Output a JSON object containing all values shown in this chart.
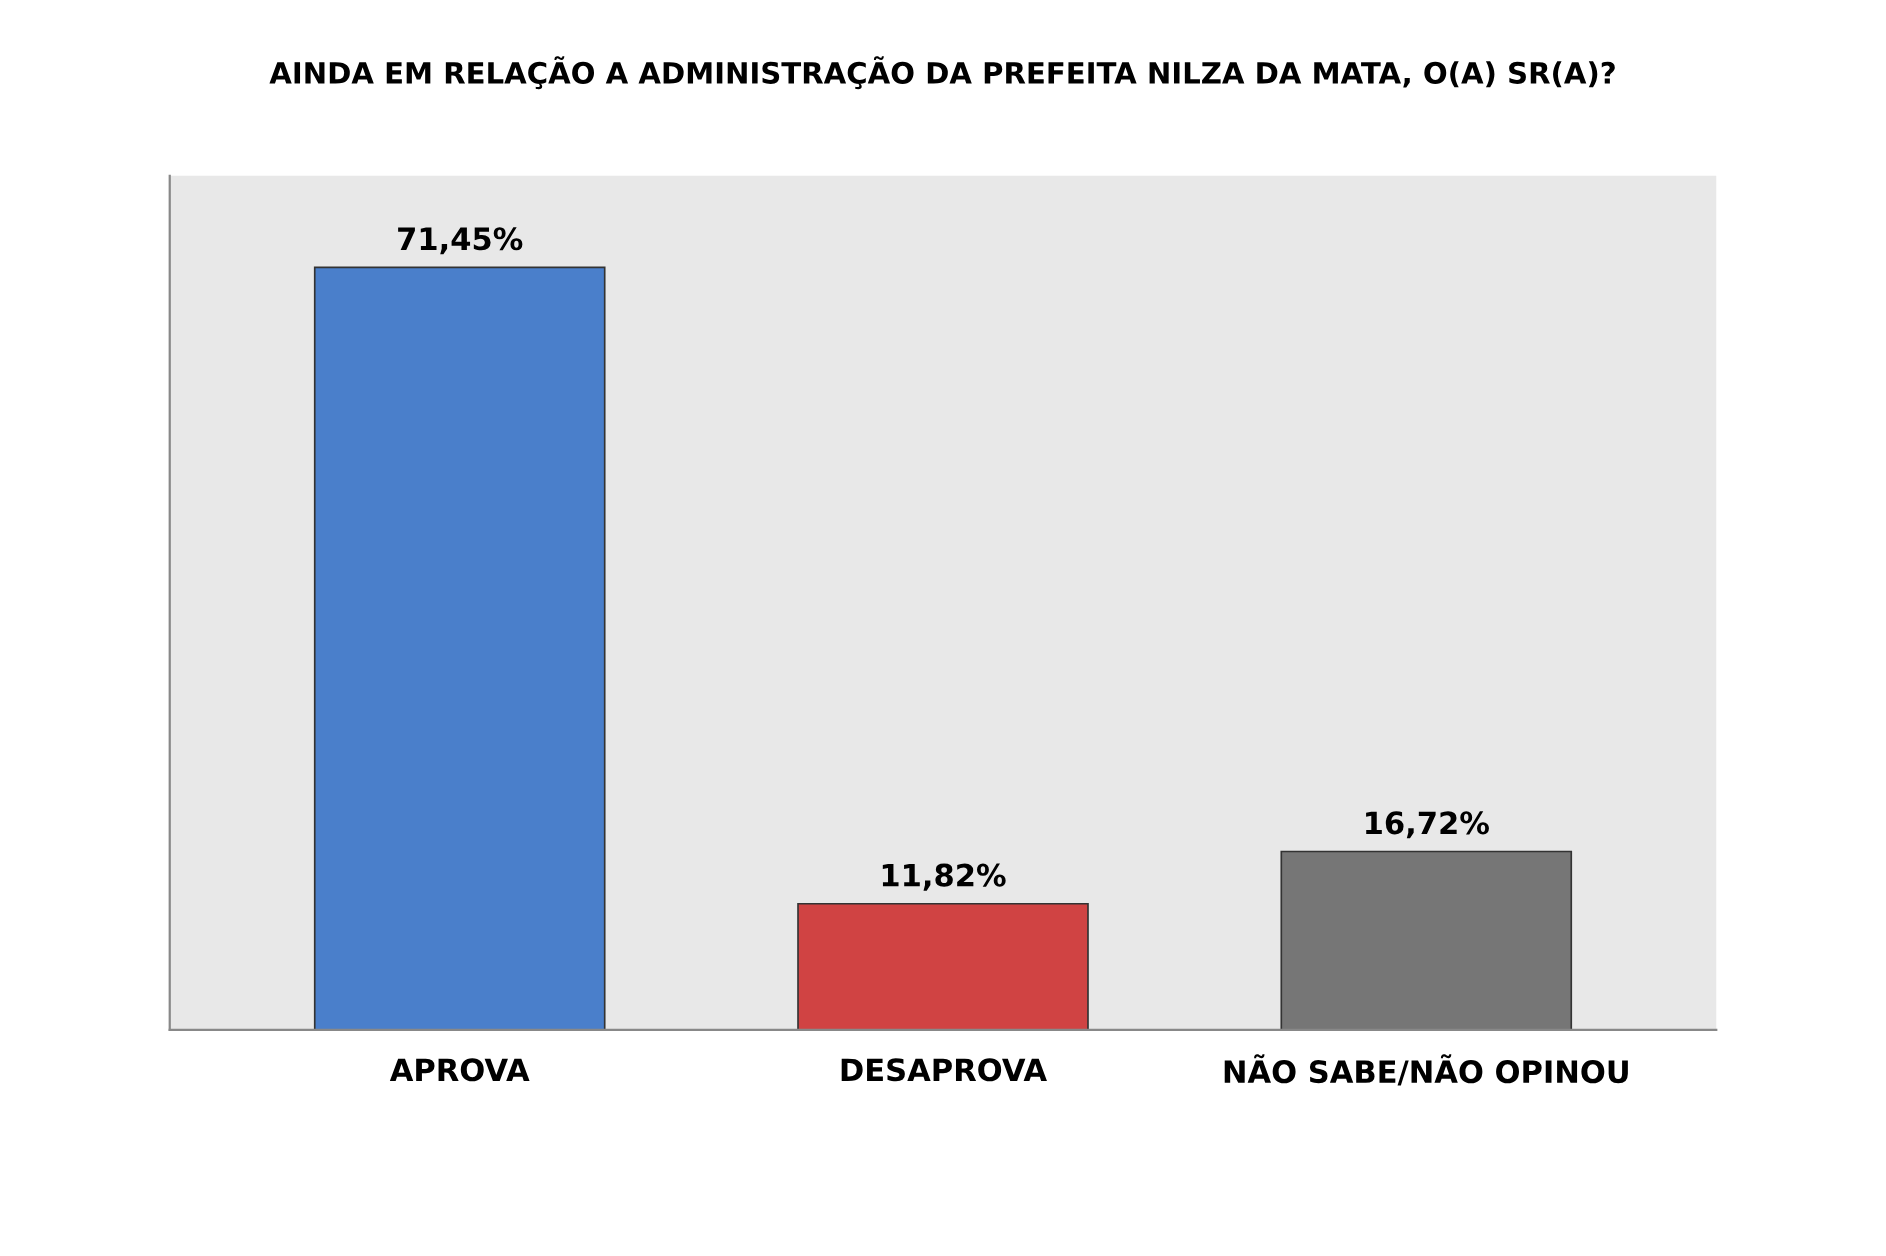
{
  "chart_data": {
    "type": "bar",
    "title": "AINDA EM RELAÇÃO A ADMINISTRAÇÃO DA PREFEITA NILZA DA MATA, O(A) SR(A)?",
    "categories": [
      "APROVA",
      "DESAPROVA",
      "NÃO SABE/NÃO OPINOU"
    ],
    "values": [
      71.45,
      11.82,
      16.72
    ],
    "colors": [
      "#4a7fcb",
      "#d04343",
      "#767676"
    ],
    "value_labels": [
      "71,45%",
      "11,82%",
      "16,72%"
    ]
  }
}
